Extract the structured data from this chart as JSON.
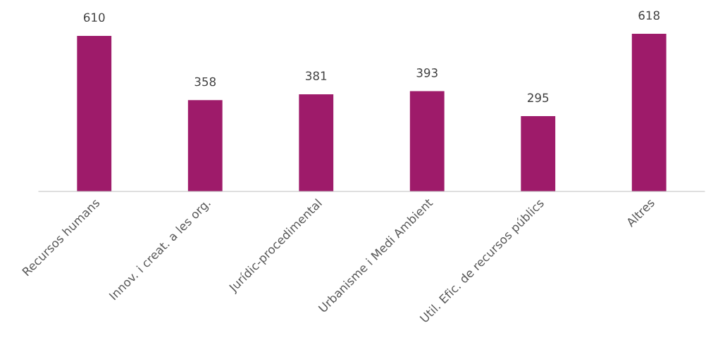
{
  "chart_data": {
    "type": "bar",
    "categories": [
      "Recursos humans",
      "Innov. i creat. a les org.",
      "Jurídic-procedimental",
      "Urbanisme i Medi Ambient",
      "Util. Efic. de recursos públics",
      "Altres"
    ],
    "values": [
      610,
      358,
      381,
      393,
      295,
      618
    ],
    "color": "#9e1b6a",
    "data_labels": true,
    "grid": false,
    "legend": false
  }
}
